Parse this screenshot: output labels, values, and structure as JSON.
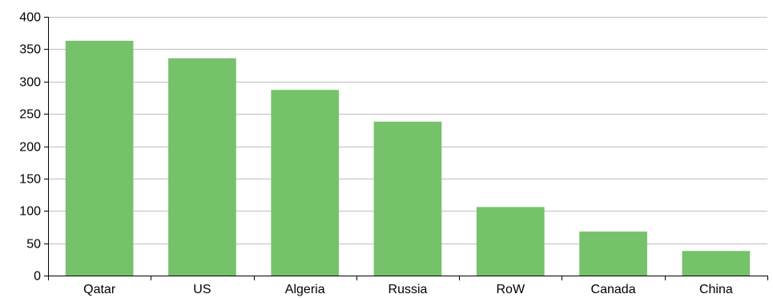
{
  "chart_data": {
    "type": "bar",
    "categories": [
      "Qatar",
      "US",
      "Algeria",
      "Russia",
      "RoW",
      "Canada",
      "China"
    ],
    "values": [
      363,
      336,
      287,
      238,
      106,
      68,
      38
    ],
    "ylim": [
      0,
      400
    ],
    "yticks": [
      0,
      50,
      100,
      150,
      200,
      250,
      300,
      350,
      400
    ],
    "grid": true,
    "legend": "none",
    "colors": {
      "bar": "#75C26A",
      "grid": "#BFBFBF",
      "axis": "#000000"
    }
  }
}
